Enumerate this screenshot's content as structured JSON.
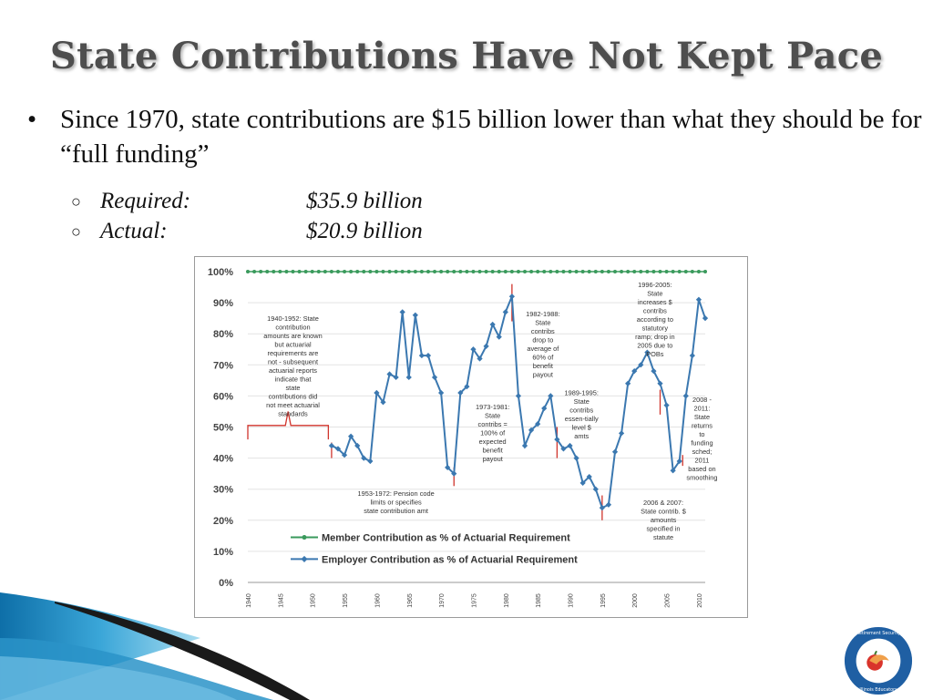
{
  "slide": {
    "title": "State Contributions Have Not Kept Pace",
    "bullet": "Since 1970, state contributions are $15 billion lower than what they should be for “full funding”",
    "sub_items": [
      {
        "label": "Required:",
        "value": "$35.9 billion"
      },
      {
        "label": "Actual:",
        "value": "$20.9 billion"
      }
    ],
    "logo_text": "Retirement Security for Illinois Educators"
  },
  "colors": {
    "title": "#4e4e4e",
    "member_series": "#3a9a5c",
    "employer_series": "#3b78b0",
    "annotation_marks": "#d0342c",
    "corner_blue": "#1b86c0",
    "logo_blue": "#1f5fa3"
  },
  "chart_data": {
    "type": "line",
    "ylim": [
      0,
      100
    ],
    "xlim": [
      1940,
      2011
    ],
    "y_ticks": [
      "0%",
      "10%",
      "20%",
      "30%",
      "40%",
      "50%",
      "60%",
      "70%",
      "80%",
      "90%",
      "100%"
    ],
    "x_ticks": [
      "1940",
      "1945",
      "1950",
      "1955",
      "1960",
      "1965",
      "1970",
      "1975",
      "1980",
      "1985",
      "1990",
      "1995",
      "2000",
      "2005",
      "2010"
    ],
    "grid": true,
    "legend_position": "bottom-center",
    "series": [
      {
        "name": "Member Contribution as % of Actuarial Requirement",
        "color": "#3a9a5c",
        "x": [
          1940,
          1941,
          1942,
          1943,
          1944,
          1945,
          1946,
          1947,
          1948,
          1949,
          1950,
          1951,
          1952,
          1953,
          1954,
          1955,
          1956,
          1957,
          1958,
          1959,
          1960,
          1961,
          1962,
          1963,
          1964,
          1965,
          1966,
          1967,
          1968,
          1969,
          1970,
          1971,
          1972,
          1973,
          1974,
          1975,
          1976,
          1977,
          1978,
          1979,
          1980,
          1981,
          1982,
          1983,
          1984,
          1985,
          1986,
          1987,
          1988,
          1989,
          1990,
          1991,
          1992,
          1993,
          1994,
          1995,
          1996,
          1997,
          1998,
          1999,
          2000,
          2001,
          2002,
          2003,
          2004,
          2005,
          2006,
          2007,
          2008,
          2009,
          2010,
          2011
        ],
        "y": [
          100,
          100,
          100,
          100,
          100,
          100,
          100,
          100,
          100,
          100,
          100,
          100,
          100,
          100,
          100,
          100,
          100,
          100,
          100,
          100,
          100,
          100,
          100,
          100,
          100,
          100,
          100,
          100,
          100,
          100,
          100,
          100,
          100,
          100,
          100,
          100,
          100,
          100,
          100,
          100,
          100,
          100,
          100,
          100,
          100,
          100,
          100,
          100,
          100,
          100,
          100,
          100,
          100,
          100,
          100,
          100,
          100,
          100,
          100,
          100,
          100,
          100,
          100,
          100,
          100,
          100,
          100,
          100,
          100,
          100,
          100,
          100
        ]
      },
      {
        "name": "Employer Contribution as % of Actuarial Requirement",
        "color": "#3b78b0",
        "x": [
          1953,
          1954,
          1955,
          1956,
          1957,
          1958,
          1959,
          1960,
          1961,
          1962,
          1963,
          1964,
          1965,
          1966,
          1967,
          1968,
          1969,
          1970,
          1971,
          1972,
          1973,
          1974,
          1975,
          1976,
          1977,
          1978,
          1979,
          1980,
          1981,
          1982,
          1983,
          1984,
          1985,
          1986,
          1987,
          1988,
          1989,
          1990,
          1991,
          1992,
          1993,
          1994,
          1995,
          1996,
          1997,
          1998,
          1999,
          2000,
          2001,
          2002,
          2003,
          2004,
          2005,
          2006,
          2007,
          2008,
          2009,
          2010,
          2011
        ],
        "y": [
          44,
          43,
          41,
          47,
          44,
          40,
          39,
          61,
          58,
          67,
          66,
          87,
          66,
          86,
          73,
          73,
          66,
          61,
          37,
          35,
          61,
          63,
          75,
          72,
          76,
          83,
          79,
          87,
          92,
          60,
          44,
          49,
          51,
          56,
          60,
          46,
          43,
          44,
          40,
          32,
          34,
          30,
          24,
          25,
          42,
          48,
          64,
          68,
          70,
          74,
          68,
          64,
          57,
          36,
          39,
          60,
          73,
          91,
          85
        ]
      }
    ],
    "annotations": [
      "1940-1952: State contribution amounts are known but actuarial requirements are not - subsequent actuarial reports indicate that state contributions did not meet actuarial standards",
      "1953-1972: Pension code limits or specifies state contribution amt",
      "1973-1981: State contribs = 100% of expected benefit payout",
      "1982-1988: State contribs drop to average of 60% of benefit payout",
      "1989-1995: State contribs essen-tially level $ amts",
      "1996-2005: State increases $ contribs according to statutory ramp; drop in 2005 due to POBs",
      "2006 & 2007: State contrib. $ amounts specified in statute",
      "2008 - 2011: State returns to funding sched; 2011 based on smoothing"
    ]
  }
}
